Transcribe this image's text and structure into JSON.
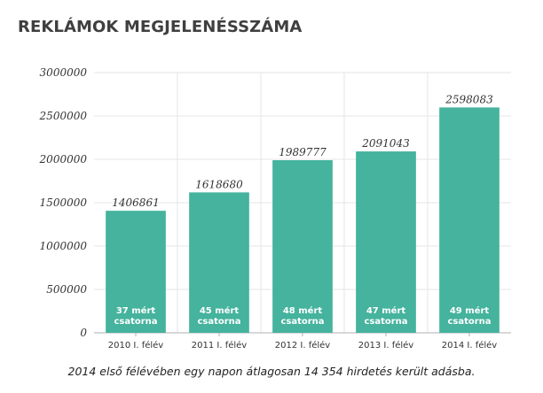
{
  "title": "REKLÁMOK MEGJELENÉSSZÁMA",
  "caption": "2014 első félévében egy napon átlagosan 14 354 hirdetés került adásba.",
  "colors": {
    "bar": "#45b39d",
    "grid": "#e6e6e6",
    "axis": "#b0b0b0"
  },
  "chart_data": {
    "type": "bar",
    "title": "REKLÁMOK MEGJELENÉSSZÁMA",
    "xlabel": "",
    "ylabel": "",
    "ylim": [
      0,
      3000000
    ],
    "yticks": [
      0,
      500000,
      1000000,
      1500000,
      2000000,
      2500000,
      3000000
    ],
    "grid": true,
    "categories": [
      "2010 I. félév",
      "2011 I. félév",
      "2012 I. félév",
      "2013 I. félév",
      "2014 I. félév"
    ],
    "values": [
      1406861,
      1618680,
      1989777,
      2091043,
      2598083
    ],
    "bar_labels": [
      [
        "37 mért",
        "csatorna"
      ],
      [
        "45 mért",
        "csatorna"
      ],
      [
        "48 mért",
        "csatorna"
      ],
      [
        "47 mért",
        "csatorna"
      ],
      [
        "49 mért",
        "csatorna"
      ]
    ]
  }
}
